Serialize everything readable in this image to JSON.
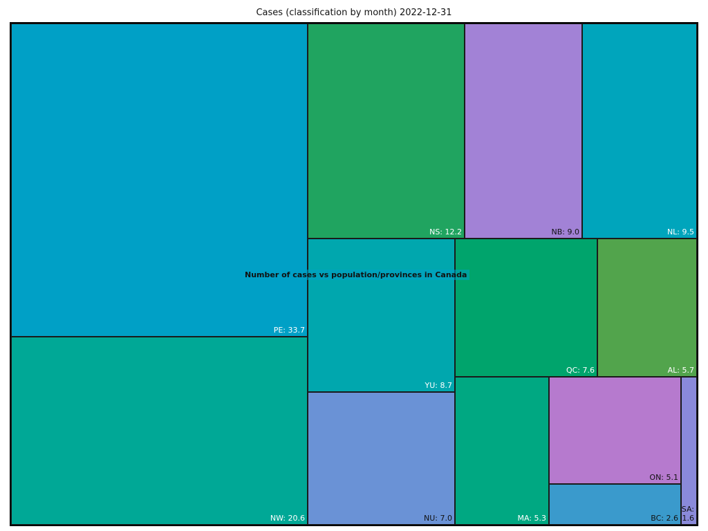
{
  "chart_data": {
    "type": "treemap",
    "title": "Cases (classification by month)  2022-12-31",
    "annotation": "Number of cases vs population/provinces in Canada",
    "items": [
      {
        "label": "PE",
        "value": 33.7,
        "color": "#00A0C6",
        "text_color": "#ffffff"
      },
      {
        "label": "NW",
        "value": 20.6,
        "color": "#00A896",
        "text_color": "#ffffff"
      },
      {
        "label": "NS",
        "value": 12.2,
        "color": "#20A460",
        "text_color": "#ffffff"
      },
      {
        "label": "NB",
        "value": 9.0,
        "color": "#A282D6",
        "text_color": "#111111"
      },
      {
        "label": "NL",
        "value": 9.5,
        "color": "#00A5BC",
        "text_color": "#ffffff"
      },
      {
        "label": "YU",
        "value": 8.7,
        "color": "#00A7AE",
        "text_color": "#ffffff"
      },
      {
        "label": "NU",
        "value": 7.0,
        "color": "#6A92D6",
        "text_color": "#111111"
      },
      {
        "label": "QC",
        "value": 7.6,
        "color": "#00A46C",
        "text_color": "#ffffff"
      },
      {
        "label": "AL",
        "value": 5.7,
        "color": "#52A44C",
        "text_color": "#ffffff"
      },
      {
        "label": "MA",
        "value": 5.3,
        "color": "#00A882",
        "text_color": "#ffffff"
      },
      {
        "label": "ON",
        "value": 5.1,
        "color": "#B67ACE",
        "text_color": "#111111"
      },
      {
        "label": "BC",
        "value": 2.6,
        "color": "#3A9ACC",
        "text_color": "#111111"
      },
      {
        "label": "SA",
        "value": 1.6,
        "color": "#8A8ADA",
        "text_color": "#111111"
      }
    ]
  }
}
